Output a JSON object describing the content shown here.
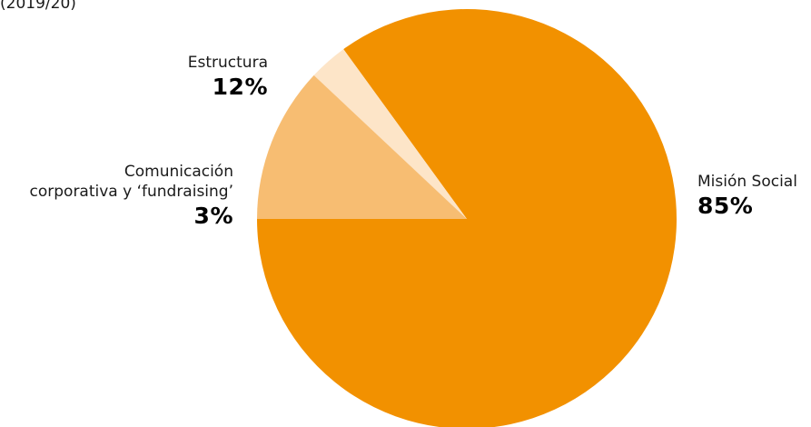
{
  "header_fragment": "(2019/20)",
  "colors": {
    "mision": "#f29100",
    "estructura": "#f7bd72",
    "comunicacion": "#fde5c8"
  },
  "chart_data": {
    "type": "pie",
    "title": "",
    "slices": [
      {
        "label": "Misión Social",
        "value": 85,
        "display": "85%",
        "color": "#f29100"
      },
      {
        "label": "Comunicación corporativa y ‘fundraising’",
        "label_lines": [
          "Comunicación",
          "corporativa y ‘fundraising’"
        ],
        "value": 3,
        "display": "3%",
        "color": "#fde5c8"
      },
      {
        "label": "Estructura",
        "value": 12,
        "display": "12%",
        "color": "#f7bd72"
      }
    ]
  }
}
